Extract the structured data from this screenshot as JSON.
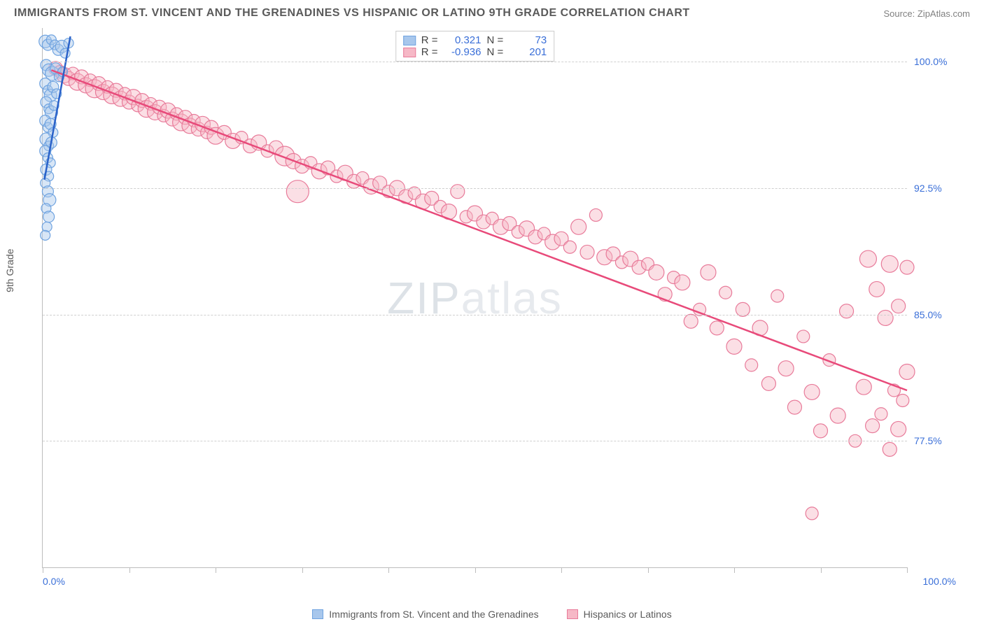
{
  "title": "IMMIGRANTS FROM ST. VINCENT AND THE GRENADINES VS HISPANIC OR LATINO 9TH GRADE CORRELATION CHART",
  "source": "Source: ZipAtlas.com",
  "ylabel": "9th Grade",
  "watermark_a": "ZIP",
  "watermark_b": "atlas",
  "colors": {
    "blue_fill": "#a8c7ec",
    "blue_stroke": "#6fa3e0",
    "pink_fill": "#f6b8c6",
    "pink_stroke": "#e87b9a",
    "trend_blue": "#2a62c9",
    "trend_pink": "#e84a7a",
    "tick_text": "#3a6fd8",
    "grid": "#d0d0d0",
    "axis": "#bdbdbd"
  },
  "axes": {
    "xlim": [
      0,
      100
    ],
    "ylim": [
      70,
      102
    ],
    "x_start_label": "0.0%",
    "x_end_label": "100.0%",
    "xticks_minor": [
      0,
      10,
      20,
      30,
      40,
      50,
      60,
      70,
      80,
      90,
      100
    ],
    "yticks": [
      {
        "v": 100.0,
        "label": "100.0%"
      },
      {
        "v": 92.5,
        "label": "92.5%"
      },
      {
        "v": 85.0,
        "label": "85.0%"
      },
      {
        "v": 77.5,
        "label": "77.5%"
      }
    ]
  },
  "legend_top": {
    "series": [
      {
        "swatch": "blue",
        "r_label": "R =",
        "r": "0.321",
        "n_label": "N =",
        "n": "73"
      },
      {
        "swatch": "pink",
        "r_label": "R =",
        "r": "-0.936",
        "n_label": "N =",
        "n": "201"
      }
    ]
  },
  "legend_bottom": [
    {
      "swatch": "blue",
      "label": "Immigrants from St. Vincent and the Grenadines"
    },
    {
      "swatch": "pink",
      "label": "Hispanics or Latinos"
    }
  ],
  "trend_lines": {
    "blue": {
      "x1": 0.2,
      "y1": 93.0,
      "x2": 3.2,
      "y2": 101.5
    },
    "pink": {
      "x1": 1.0,
      "y1": 99.5,
      "x2": 100.0,
      "y2": 80.5
    }
  },
  "series_blue": [
    {
      "x": 0.3,
      "y": 101.2,
      "r": 9
    },
    {
      "x": 0.6,
      "y": 101.0,
      "r": 8
    },
    {
      "x": 1.0,
      "y": 101.3,
      "r": 7
    },
    {
      "x": 1.4,
      "y": 101.0,
      "r": 7
    },
    {
      "x": 1.8,
      "y": 100.7,
      "r": 8
    },
    {
      "x": 2.2,
      "y": 100.9,
      "r": 9
    },
    {
      "x": 2.6,
      "y": 100.5,
      "r": 7
    },
    {
      "x": 3.0,
      "y": 101.1,
      "r": 7
    },
    {
      "x": 0.4,
      "y": 99.8,
      "r": 8
    },
    {
      "x": 0.7,
      "y": 99.5,
      "r": 9
    },
    {
      "x": 1.1,
      "y": 99.3,
      "r": 10
    },
    {
      "x": 1.5,
      "y": 99.6,
      "r": 8
    },
    {
      "x": 1.9,
      "y": 99.1,
      "r": 7
    },
    {
      "x": 2.3,
      "y": 99.4,
      "r": 7
    },
    {
      "x": 0.3,
      "y": 98.7,
      "r": 8
    },
    {
      "x": 0.6,
      "y": 98.3,
      "r": 7
    },
    {
      "x": 0.9,
      "y": 98.0,
      "r": 9
    },
    {
      "x": 1.2,
      "y": 98.5,
      "r": 8
    },
    {
      "x": 1.6,
      "y": 98.1,
      "r": 7
    },
    {
      "x": 0.4,
      "y": 97.6,
      "r": 8
    },
    {
      "x": 0.7,
      "y": 97.2,
      "r": 7
    },
    {
      "x": 1.0,
      "y": 97.0,
      "r": 9
    },
    {
      "x": 1.3,
      "y": 97.4,
      "r": 7
    },
    {
      "x": 0.3,
      "y": 96.5,
      "r": 8
    },
    {
      "x": 0.6,
      "y": 96.1,
      "r": 7
    },
    {
      "x": 0.9,
      "y": 96.3,
      "r": 8
    },
    {
      "x": 1.2,
      "y": 95.8,
      "r": 7
    },
    {
      "x": 0.4,
      "y": 95.4,
      "r": 9
    },
    {
      "x": 0.7,
      "y": 95.0,
      "r": 7
    },
    {
      "x": 1.0,
      "y": 95.2,
      "r": 8
    },
    {
      "x": 0.3,
      "y": 94.7,
      "r": 8
    },
    {
      "x": 0.6,
      "y": 94.3,
      "r": 7
    },
    {
      "x": 0.9,
      "y": 94.0,
      "r": 7
    },
    {
      "x": 0.4,
      "y": 93.6,
      "r": 8
    },
    {
      "x": 0.7,
      "y": 93.2,
      "r": 7
    },
    {
      "x": 0.3,
      "y": 92.8,
      "r": 7
    },
    {
      "x": 0.6,
      "y": 92.3,
      "r": 8
    },
    {
      "x": 0.8,
      "y": 91.8,
      "r": 9
    },
    {
      "x": 0.4,
      "y": 91.3,
      "r": 7
    },
    {
      "x": 0.7,
      "y": 90.8,
      "r": 8
    },
    {
      "x": 0.5,
      "y": 90.2,
      "r": 7
    },
    {
      "x": 0.3,
      "y": 89.7,
      "r": 7
    }
  ],
  "series_pink": [
    {
      "x": 1.5,
      "y": 99.6,
      "r": 10
    },
    {
      "x": 2.0,
      "y": 99.4,
      "r": 9
    },
    {
      "x": 2.5,
      "y": 99.2,
      "r": 11
    },
    {
      "x": 3.0,
      "y": 99.0,
      "r": 10
    },
    {
      "x": 3.5,
      "y": 99.3,
      "r": 9
    },
    {
      "x": 4.0,
      "y": 98.8,
      "r": 12
    },
    {
      "x": 4.5,
      "y": 99.1,
      "r": 10
    },
    {
      "x": 5.0,
      "y": 98.6,
      "r": 11
    },
    {
      "x": 5.5,
      "y": 98.9,
      "r": 9
    },
    {
      "x": 6.0,
      "y": 98.4,
      "r": 13
    },
    {
      "x": 6.5,
      "y": 98.7,
      "r": 10
    },
    {
      "x": 7.0,
      "y": 98.2,
      "r": 11
    },
    {
      "x": 7.5,
      "y": 98.5,
      "r": 9
    },
    {
      "x": 8.0,
      "y": 98.0,
      "r": 12
    },
    {
      "x": 8.5,
      "y": 98.3,
      "r": 10
    },
    {
      "x": 9.0,
      "y": 97.8,
      "r": 11
    },
    {
      "x": 9.5,
      "y": 98.1,
      "r": 9
    },
    {
      "x": 10.0,
      "y": 97.6,
      "r": 10
    },
    {
      "x": 10.5,
      "y": 97.9,
      "r": 11
    },
    {
      "x": 11.0,
      "y": 97.4,
      "r": 9
    },
    {
      "x": 11.5,
      "y": 97.7,
      "r": 10
    },
    {
      "x": 12.0,
      "y": 97.2,
      "r": 12
    },
    {
      "x": 12.5,
      "y": 97.5,
      "r": 9
    },
    {
      "x": 13.0,
      "y": 97.0,
      "r": 11
    },
    {
      "x": 13.5,
      "y": 97.3,
      "r": 10
    },
    {
      "x": 14.0,
      "y": 96.8,
      "r": 9
    },
    {
      "x": 14.5,
      "y": 97.1,
      "r": 11
    },
    {
      "x": 15.0,
      "y": 96.6,
      "r": 10
    },
    {
      "x": 15.5,
      "y": 96.9,
      "r": 9
    },
    {
      "x": 16.0,
      "y": 96.4,
      "r": 12
    },
    {
      "x": 16.5,
      "y": 96.7,
      "r": 10
    },
    {
      "x": 17.0,
      "y": 96.2,
      "r": 11
    },
    {
      "x": 17.5,
      "y": 96.5,
      "r": 9
    },
    {
      "x": 18.0,
      "y": 96.0,
      "r": 10
    },
    {
      "x": 18.5,
      "y": 96.3,
      "r": 11
    },
    {
      "x": 19.0,
      "y": 95.8,
      "r": 9
    },
    {
      "x": 19.5,
      "y": 96.1,
      "r": 10
    },
    {
      "x": 20.0,
      "y": 95.6,
      "r": 12
    },
    {
      "x": 21.0,
      "y": 95.8,
      "r": 10
    },
    {
      "x": 22.0,
      "y": 95.3,
      "r": 11
    },
    {
      "x": 23.0,
      "y": 95.5,
      "r": 9
    },
    {
      "x": 24.0,
      "y": 95.0,
      "r": 10
    },
    {
      "x": 25.0,
      "y": 95.2,
      "r": 11
    },
    {
      "x": 26.0,
      "y": 94.7,
      "r": 9
    },
    {
      "x": 27.0,
      "y": 94.9,
      "r": 10
    },
    {
      "x": 28.0,
      "y": 94.4,
      "r": 14
    },
    {
      "x": 29.0,
      "y": 94.1,
      "r": 11
    },
    {
      "x": 29.5,
      "y": 92.3,
      "r": 16
    },
    {
      "x": 30.0,
      "y": 93.8,
      "r": 10
    },
    {
      "x": 31.0,
      "y": 94.0,
      "r": 9
    },
    {
      "x": 32.0,
      "y": 93.5,
      "r": 11
    },
    {
      "x": 33.0,
      "y": 93.7,
      "r": 10
    },
    {
      "x": 34.0,
      "y": 93.2,
      "r": 9
    },
    {
      "x": 35.0,
      "y": 93.4,
      "r": 11
    },
    {
      "x": 36.0,
      "y": 92.9,
      "r": 10
    },
    {
      "x": 37.0,
      "y": 93.1,
      "r": 9
    },
    {
      "x": 38.0,
      "y": 92.6,
      "r": 11
    },
    {
      "x": 39.0,
      "y": 92.8,
      "r": 10
    },
    {
      "x": 40.0,
      "y": 92.3,
      "r": 9
    },
    {
      "x": 41.0,
      "y": 92.5,
      "r": 11
    },
    {
      "x": 42.0,
      "y": 92.0,
      "r": 10
    },
    {
      "x": 43.0,
      "y": 92.2,
      "r": 9
    },
    {
      "x": 44.0,
      "y": 91.7,
      "r": 11
    },
    {
      "x": 45.0,
      "y": 91.9,
      "r": 10
    },
    {
      "x": 46.0,
      "y": 91.4,
      "r": 9
    },
    {
      "x": 47.0,
      "y": 91.1,
      "r": 11
    },
    {
      "x": 48.0,
      "y": 92.3,
      "r": 10
    },
    {
      "x": 49.0,
      "y": 90.8,
      "r": 9
    },
    {
      "x": 50.0,
      "y": 91.0,
      "r": 11
    },
    {
      "x": 51.0,
      "y": 90.5,
      "r": 10
    },
    {
      "x": 52.0,
      "y": 90.7,
      "r": 9
    },
    {
      "x": 53.0,
      "y": 90.2,
      "r": 11
    },
    {
      "x": 54.0,
      "y": 90.4,
      "r": 10
    },
    {
      "x": 55.0,
      "y": 89.9,
      "r": 9
    },
    {
      "x": 56.0,
      "y": 90.1,
      "r": 11
    },
    {
      "x": 57.0,
      "y": 89.6,
      "r": 10
    },
    {
      "x": 58.0,
      "y": 89.8,
      "r": 9
    },
    {
      "x": 59.0,
      "y": 89.3,
      "r": 11
    },
    {
      "x": 60.0,
      "y": 89.5,
      "r": 10
    },
    {
      "x": 61.0,
      "y": 89.0,
      "r": 9
    },
    {
      "x": 62.0,
      "y": 90.2,
      "r": 11
    },
    {
      "x": 63.0,
      "y": 88.7,
      "r": 10
    },
    {
      "x": 64.0,
      "y": 90.9,
      "r": 9
    },
    {
      "x": 65.0,
      "y": 88.4,
      "r": 11
    },
    {
      "x": 66.0,
      "y": 88.6,
      "r": 10
    },
    {
      "x": 67.0,
      "y": 88.1,
      "r": 9
    },
    {
      "x": 68.0,
      "y": 88.3,
      "r": 11
    },
    {
      "x": 69.0,
      "y": 87.8,
      "r": 10
    },
    {
      "x": 70.0,
      "y": 88.0,
      "r": 9
    },
    {
      "x": 71.0,
      "y": 87.5,
      "r": 11
    },
    {
      "x": 72.0,
      "y": 86.2,
      "r": 10
    },
    {
      "x": 73.0,
      "y": 87.2,
      "r": 9
    },
    {
      "x": 74.0,
      "y": 86.9,
      "r": 11
    },
    {
      "x": 75.0,
      "y": 84.6,
      "r": 10
    },
    {
      "x": 76.0,
      "y": 85.3,
      "r": 9
    },
    {
      "x": 77.0,
      "y": 87.5,
      "r": 11
    },
    {
      "x": 78.0,
      "y": 84.2,
      "r": 10
    },
    {
      "x": 79.0,
      "y": 86.3,
      "r": 9
    },
    {
      "x": 80.0,
      "y": 83.1,
      "r": 11
    },
    {
      "x": 81.0,
      "y": 85.3,
      "r": 10
    },
    {
      "x": 82.0,
      "y": 82.0,
      "r": 9
    },
    {
      "x": 83.0,
      "y": 84.2,
      "r": 11
    },
    {
      "x": 84.0,
      "y": 80.9,
      "r": 10
    },
    {
      "x": 85.0,
      "y": 86.1,
      "r": 9
    },
    {
      "x": 86.0,
      "y": 81.8,
      "r": 11
    },
    {
      "x": 87.0,
      "y": 79.5,
      "r": 10
    },
    {
      "x": 88.0,
      "y": 83.7,
      "r": 9
    },
    {
      "x": 89.0,
      "y": 80.4,
      "r": 11
    },
    {
      "x": 90.0,
      "y": 78.1,
      "r": 10
    },
    {
      "x": 91.0,
      "y": 82.3,
      "r": 9
    },
    {
      "x": 92.0,
      "y": 79.0,
      "r": 11
    },
    {
      "x": 93.0,
      "y": 85.2,
      "r": 10
    },
    {
      "x": 94.0,
      "y": 77.5,
      "r": 9
    },
    {
      "x": 95.0,
      "y": 80.7,
      "r": 11
    },
    {
      "x": 95.5,
      "y": 88.3,
      "r": 12
    },
    {
      "x": 96.0,
      "y": 78.4,
      "r": 10
    },
    {
      "x": 96.5,
      "y": 86.5,
      "r": 11
    },
    {
      "x": 97.0,
      "y": 79.1,
      "r": 9
    },
    {
      "x": 97.5,
      "y": 84.8,
      "r": 11
    },
    {
      "x": 98.0,
      "y": 77.0,
      "r": 10
    },
    {
      "x": 98.0,
      "y": 88.0,
      "r": 12
    },
    {
      "x": 98.5,
      "y": 80.5,
      "r": 9
    },
    {
      "x": 99.0,
      "y": 78.2,
      "r": 11
    },
    {
      "x": 99.0,
      "y": 85.5,
      "r": 10
    },
    {
      "x": 99.5,
      "y": 79.9,
      "r": 9
    },
    {
      "x": 100.0,
      "y": 81.6,
      "r": 11
    },
    {
      "x": 100.0,
      "y": 87.8,
      "r": 10
    },
    {
      "x": 89.0,
      "y": 73.2,
      "r": 9
    }
  ]
}
